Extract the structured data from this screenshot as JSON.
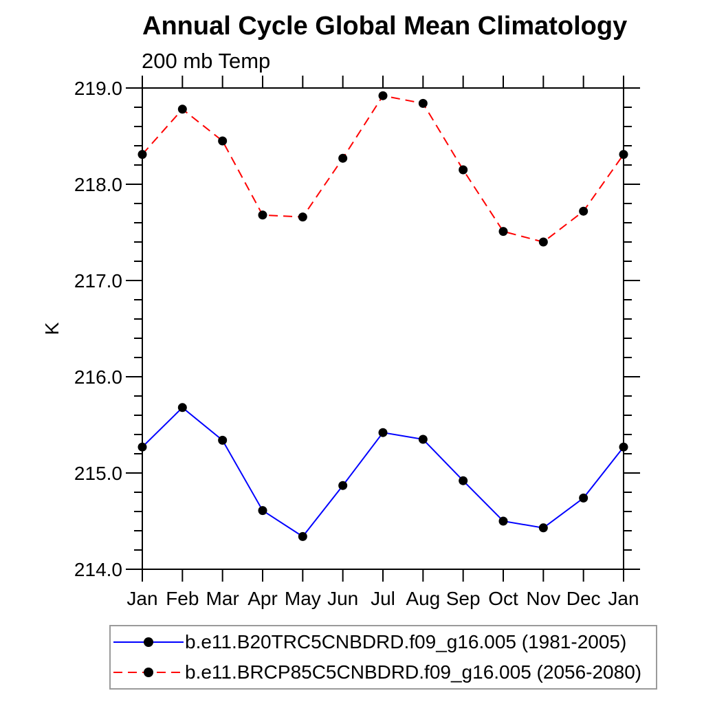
{
  "chart_data": {
    "type": "line",
    "title": "Annual Cycle Global Mean Climatology",
    "subtitle": "200 mb Temp",
    "ylabel": "K",
    "xlabel": "",
    "categories": [
      "Jan",
      "Feb",
      "Mar",
      "Apr",
      "May",
      "Jun",
      "Jul",
      "Aug",
      "Sep",
      "Oct",
      "Nov",
      "Dec",
      "Jan"
    ],
    "ylim": [
      214.0,
      219.0
    ],
    "ytick_values": [
      214.0,
      215.0,
      216.0,
      217.0,
      218.0,
      219.0
    ],
    "ytick_labels": [
      "214.0",
      "215.0",
      "216.0",
      "217.0",
      "218.0",
      "219.0"
    ],
    "yminor_interval": 0.2,
    "grid": false,
    "legend_position": "bottom",
    "series": [
      {
        "name": "b.e11.B20TRC5CNBDRD.f09_g16.005 (1981-2005)",
        "color": "#0000ff",
        "line_style": "solid",
        "marker": "filled-circle",
        "marker_color": "#000000",
        "values": [
          215.27,
          215.68,
          215.34,
          214.61,
          214.34,
          214.87,
          215.42,
          215.35,
          214.92,
          214.5,
          214.43,
          214.74,
          215.27
        ]
      },
      {
        "name": "b.e11.BRCP85C5CNBDRD.f09_g16.005 (2056-2080)",
        "color": "#ff0000",
        "line_style": "dashed",
        "marker": "filled-circle",
        "marker_color": "#000000",
        "values": [
          218.31,
          218.78,
          218.45,
          217.68,
          217.66,
          218.27,
          218.92,
          218.84,
          218.15,
          217.51,
          217.4,
          217.72,
          218.31
        ]
      }
    ]
  },
  "colors": {
    "background": "#ffffff",
    "axis": "#000000",
    "text": "#000000",
    "legend_border": "#9a9a9a"
  }
}
